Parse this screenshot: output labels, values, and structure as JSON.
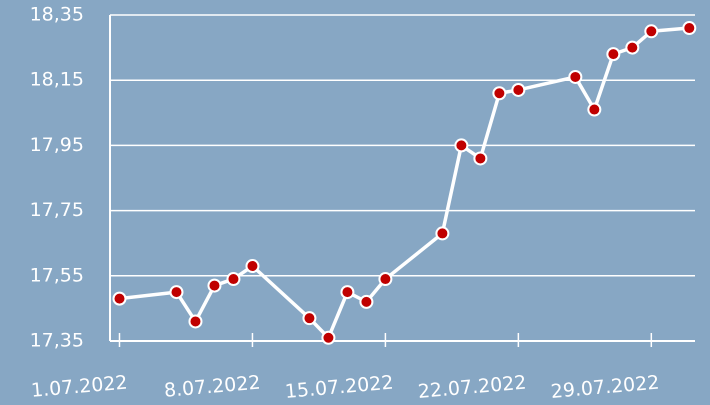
{
  "chart_data": {
    "type": "line",
    "x": [
      1,
      4,
      5,
      6,
      7,
      8,
      11,
      12,
      13,
      14,
      15,
      18,
      19,
      20,
      21,
      22,
      25,
      26,
      27,
      28,
      29,
      31
    ],
    "series": [
      {
        "color": "#ffffff",
        "marker_color": "#c00000",
        "values": [
          17.48,
          17.5,
          17.41,
          17.52,
          17.54,
          17.58,
          17.42,
          17.36,
          17.5,
          17.47,
          17.54,
          17.68,
          17.95,
          17.91,
          18.11,
          18.12,
          18.16,
          18.06,
          18.23,
          18.25,
          18.3,
          18.31
        ]
      }
    ],
    "xlim": [
      0.5,
      31.3
    ],
    "xticks": [
      {
        "value": 1,
        "label": "1.07.2022"
      },
      {
        "value": 8,
        "label": "8.07.2022"
      },
      {
        "value": 15,
        "label": "15.07.2022"
      },
      {
        "value": 22,
        "label": "22.07.2022"
      },
      {
        "value": 29,
        "label": "29.07.2022"
      }
    ],
    "ylim": [
      17.35,
      18.35
    ],
    "yticks": [
      {
        "value": 17.35,
        "label": "17,35"
      },
      {
        "value": 17.55,
        "label": "17,55"
      },
      {
        "value": 17.75,
        "label": "17,75"
      },
      {
        "value": 17.95,
        "label": "17,95"
      },
      {
        "value": 18.15,
        "label": "18,15"
      },
      {
        "value": 18.35,
        "label": "18,35"
      }
    ],
    "grid": true
  }
}
